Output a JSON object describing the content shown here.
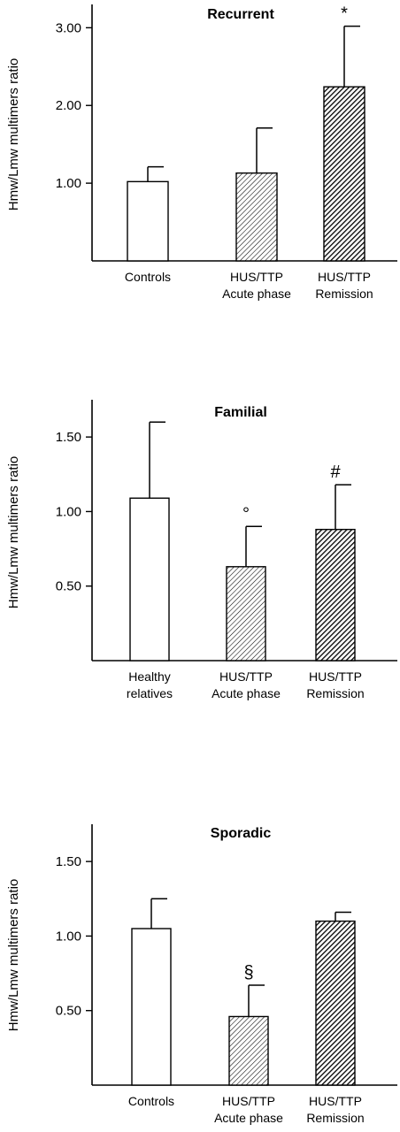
{
  "chart_data": [
    {
      "type": "bar",
      "title": "Recurrent",
      "ylabel": "Hmw/Lmw multimers ratio",
      "ylim": [
        0,
        3.3
      ],
      "yticks": [
        {
          "value": 1.0,
          "label": "1.00"
        },
        {
          "value": 2.0,
          "label": "2.00"
        },
        {
          "value": 3.0,
          "label": "3.00"
        }
      ],
      "categories": [
        [
          "Controls"
        ],
        [
          "HUS/TTP",
          "Acute phase"
        ],
        [
          "HUS/TTP",
          "Remission"
        ]
      ],
      "values": [
        1.02,
        1.13,
        2.24
      ],
      "errors": [
        0.19,
        0.58,
        0.78
      ],
      "fills": [
        "white",
        "light-hatch",
        "dark-hatch"
      ],
      "annotations": [
        "",
        "",
        "*"
      ]
    },
    {
      "type": "bar",
      "title": "Familial",
      "ylabel": "Hmw/Lmw multimers ratio",
      "ylim": [
        0,
        1.75
      ],
      "yticks": [
        {
          "value": 0.5,
          "label": "0.50"
        },
        {
          "value": 1.0,
          "label": "1.00"
        },
        {
          "value": 1.5,
          "label": "1.50"
        }
      ],
      "categories": [
        [
          "Healthy",
          "relatives"
        ],
        [
          "HUS/TTP",
          "Acute phase"
        ],
        [
          "HUS/TTP",
          "Remission"
        ]
      ],
      "values": [
        1.09,
        0.63,
        0.88
      ],
      "errors": [
        0.51,
        0.27,
        0.3
      ],
      "fills": [
        "white",
        "light-hatch",
        "dark-hatch"
      ],
      "annotations": [
        "",
        "°",
        "#"
      ]
    },
    {
      "type": "bar",
      "title": "Sporadic",
      "ylabel": "Hmw/Lmw multimers ratio",
      "ylim": [
        0,
        1.75
      ],
      "yticks": [
        {
          "value": 0.5,
          "label": "0.50"
        },
        {
          "value": 1.0,
          "label": "1.00"
        },
        {
          "value": 1.5,
          "label": "1.50"
        }
      ],
      "categories": [
        [
          "Controls"
        ],
        [
          "HUS/TTP",
          "Acute phase"
        ],
        [
          "HUS/TTP",
          "Remission"
        ]
      ],
      "values": [
        1.05,
        0.46,
        1.1
      ],
      "errors": [
        0.2,
        0.21,
        0.06
      ],
      "fills": [
        "white",
        "light-hatch",
        "dark-hatch"
      ],
      "annotations": [
        "",
        "§",
        ""
      ]
    }
  ]
}
